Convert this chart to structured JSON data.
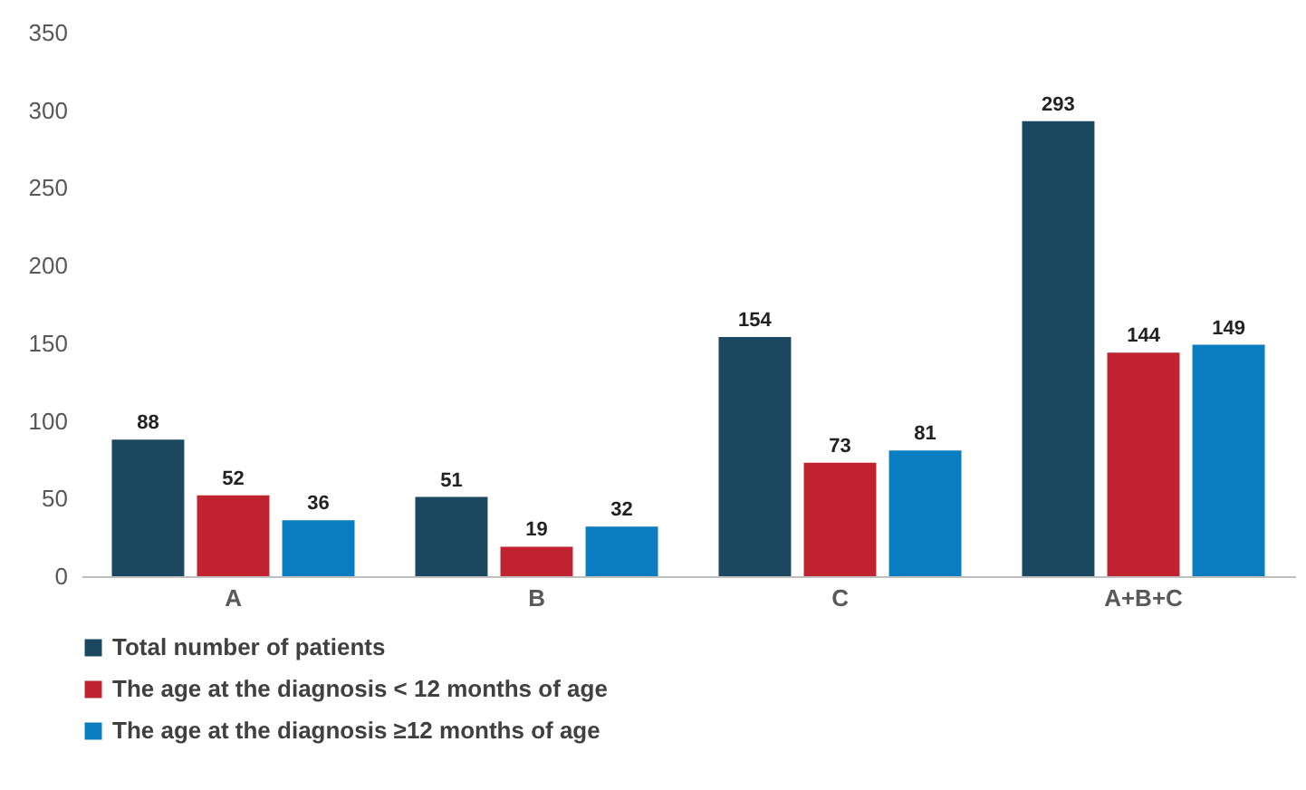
{
  "chart_data": {
    "type": "bar",
    "categories": [
      "A",
      "B",
      "C",
      "A+B+C"
    ],
    "series": [
      {
        "name": "Total number of patients",
        "color": "#1b4760",
        "values": [
          88,
          51,
          154,
          293
        ]
      },
      {
        "name": "The age at the diagnosis < 12 months of age",
        "color": "#c0232f",
        "values": [
          52,
          19,
          73,
          144
        ]
      },
      {
        "name": "The age at the diagnosis ≥12 months of age",
        "color": "#0a7dc1",
        "values": [
          36,
          32,
          81,
          149
        ]
      }
    ],
    "ylim": [
      0,
      350
    ],
    "yticks": [
      0,
      50,
      100,
      150,
      200,
      250,
      300,
      350
    ],
    "data_labels": true,
    "grid": false,
    "legend": "bottom"
  }
}
